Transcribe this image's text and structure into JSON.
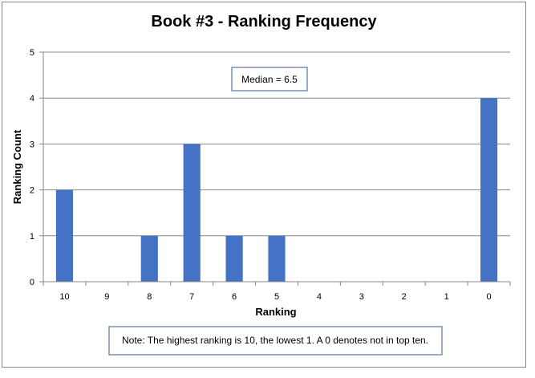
{
  "chart_data": {
    "type": "bar",
    "title": "Book #3 - Ranking Frequency",
    "xlabel": "Ranking",
    "ylabel": "Ranking Count",
    "categories": [
      "10",
      "9",
      "8",
      "7",
      "6",
      "5",
      "4",
      "3",
      "2",
      "1",
      "0"
    ],
    "values": [
      2,
      0,
      1,
      3,
      1,
      1,
      0,
      0,
      0,
      0,
      4
    ],
    "ylim": [
      0,
      5
    ],
    "yticks": [
      "0",
      "1",
      "2",
      "3",
      "4",
      "5"
    ],
    "grid": true,
    "bar_color": "#4472c4",
    "annotations": {
      "median": "Median = 6.5",
      "note": "Note: The highest ranking is 10, the lowest 1. A 0 denotes not in top ten."
    }
  }
}
